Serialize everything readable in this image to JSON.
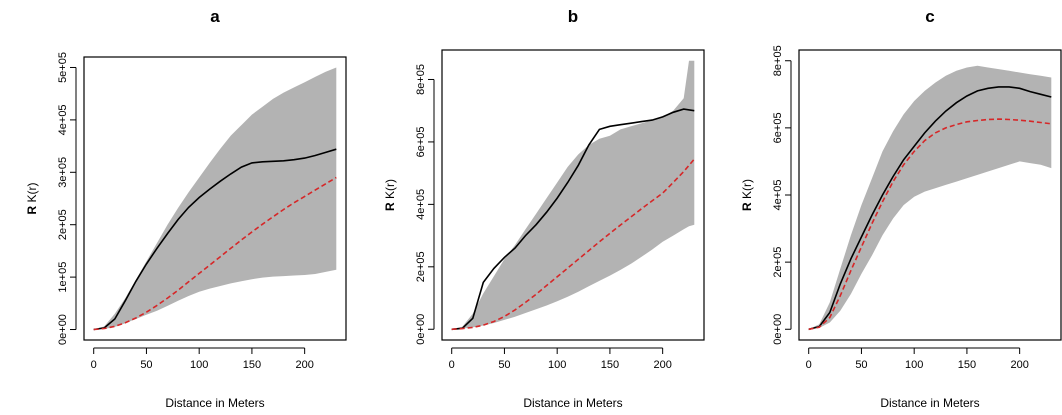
{
  "chart_data": [
    {
      "type": "line",
      "title": "a",
      "xlabel": "Distance in Meters",
      "ylabel_prefix": "R",
      "ylabel": "K(r)",
      "xlim": [
        0,
        230
      ],
      "ylim": [
        0,
        500000
      ],
      "x_ticks": [
        0,
        50,
        100,
        150,
        200
      ],
      "x_tick_labels": [
        "0",
        "50",
        "100",
        "150",
        "200"
      ],
      "y_ticks": [
        0,
        100000,
        200000,
        300000,
        400000,
        500000
      ],
      "y_tick_labels": [
        "0e+00",
        "1e+05",
        "2e+05",
        "3e+05",
        "4e+05",
        "5e+05"
      ],
      "grid": false,
      "envelope": {
        "x": [
          0,
          10,
          20,
          30,
          40,
          50,
          60,
          70,
          80,
          90,
          100,
          110,
          120,
          130,
          140,
          150,
          160,
          170,
          180,
          190,
          200,
          210,
          220,
          230
        ],
        "upper": [
          0,
          6000,
          30000,
          60000,
          95000,
          130000,
          165000,
          200000,
          232000,
          262000,
          290000,
          318000,
          345000,
          370000,
          390000,
          410000,
          425000,
          440000,
          452000,
          462000,
          472000,
          482000,
          492000,
          500000
        ],
        "lower": [
          0,
          1000,
          5000,
          12000,
          20000,
          28000,
          36000,
          45000,
          55000,
          64000,
          72000,
          78000,
          83000,
          88000,
          92000,
          96000,
          99000,
          101000,
          102000,
          103000,
          104000,
          106000,
          110000,
          114000
        ]
      },
      "series": [
        {
          "style": "solid",
          "color": "#000000",
          "x": [
            0,
            10,
            20,
            30,
            40,
            50,
            60,
            70,
            80,
            90,
            100,
            110,
            120,
            130,
            140,
            150,
            160,
            170,
            180,
            190,
            200,
            210,
            220,
            230
          ],
          "values": [
            0,
            3000,
            20000,
            55000,
            92000,
            125000,
            155000,
            183000,
            210000,
            233000,
            252000,
            268000,
            283000,
            297000,
            310000,
            318000,
            320000,
            321000,
            322000,
            324000,
            327000,
            332000,
            338000,
            344000
          ]
        },
        {
          "style": "dashed",
          "color": "#d62728",
          "x": [
            0,
            10,
            20,
            30,
            40,
            50,
            60,
            70,
            80,
            90,
            100,
            110,
            120,
            130,
            140,
            150,
            160,
            170,
            180,
            190,
            200,
            210,
            220,
            230
          ],
          "values": [
            0,
            2000,
            6000,
            13000,
            22000,
            33000,
            46000,
            60000,
            75000,
            91000,
            107000,
            123000,
            139000,
            155000,
            171000,
            186000,
            201000,
            215000,
            229000,
            242000,
            254000,
            266000,
            278000,
            290000
          ]
        }
      ]
    },
    {
      "type": "line",
      "title": "b",
      "xlabel": "Distance in Meters",
      "ylabel_prefix": "R",
      "ylabel": "K(r)",
      "xlim": [
        0,
        230
      ],
      "ylim": [
        0,
        860000
      ],
      "x_ticks": [
        0,
        50,
        100,
        150,
        200
      ],
      "x_tick_labels": [
        "0",
        "50",
        "100",
        "150",
        "200"
      ],
      "y_ticks": [
        0,
        200000,
        400000,
        600000,
        800000
      ],
      "y_tick_labels": [
        "0e+00",
        "2e+05",
        "4e+05",
        "6e+05",
        "8e+05"
      ],
      "grid": false,
      "envelope": {
        "x": [
          0,
          10,
          20,
          30,
          40,
          50,
          60,
          70,
          80,
          90,
          100,
          110,
          120,
          130,
          140,
          150,
          160,
          170,
          180,
          190,
          200,
          210,
          220,
          225,
          230
        ],
        "upper": [
          0,
          8000,
          50000,
          115000,
          170000,
          225000,
          270000,
          320000,
          370000,
          420000,
          470000,
          520000,
          560000,
          590000,
          610000,
          620000,
          640000,
          650000,
          660000,
          670000,
          680000,
          700000,
          740000,
          860000,
          860000
        ],
        "lower": [
          0,
          2000,
          6000,
          12000,
          20000,
          30000,
          40000,
          52000,
          64000,
          76000,
          90000,
          104000,
          120000,
          138000,
          155000,
          172000,
          190000,
          210000,
          232000,
          255000,
          280000,
          300000,
          320000,
          330000,
          335000
        ]
      },
      "series": [
        {
          "style": "solid",
          "color": "#000000",
          "x": [
            0,
            10,
            20,
            30,
            40,
            50,
            60,
            70,
            80,
            90,
            100,
            110,
            120,
            130,
            140,
            150,
            160,
            170,
            180,
            190,
            200,
            210,
            220,
            230
          ],
          "values": [
            0,
            3000,
            35000,
            150000,
            195000,
            230000,
            260000,
            300000,
            335000,
            375000,
            420000,
            470000,
            525000,
            590000,
            640000,
            650000,
            655000,
            660000,
            665000,
            670000,
            680000,
            695000,
            705000,
            700000
          ]
        },
        {
          "style": "dashed",
          "color": "#d62728",
          "x": [
            0,
            10,
            20,
            30,
            40,
            50,
            60,
            70,
            80,
            90,
            100,
            110,
            120,
            130,
            140,
            150,
            160,
            170,
            180,
            190,
            200,
            210,
            220,
            230
          ],
          "values": [
            0,
            2000,
            6000,
            13000,
            25000,
            41000,
            62000,
            86000,
            112000,
            140000,
            168000,
            196000,
            224000,
            252000,
            280000,
            307000,
            334000,
            360000,
            386000,
            411000,
            436000,
            470000,
            505000,
            545000
          ]
        }
      ]
    },
    {
      "type": "line",
      "title": "c",
      "xlabel": "Distance in Meters",
      "ylabel_prefix": "R",
      "ylabel": "K(r)",
      "xlim": [
        0,
        230
      ],
      "ylim": [
        0,
        800000
      ],
      "x_ticks": [
        0,
        50,
        100,
        150,
        200
      ],
      "x_tick_labels": [
        "0",
        "50",
        "100",
        "150",
        "200"
      ],
      "y_ticks": [
        0,
        200000,
        400000,
        600000,
        800000
      ],
      "y_tick_labels": [
        "0e+00",
        "2e+05",
        "4e+05",
        "6e+05",
        "8e+05"
      ],
      "grid": false,
      "envelope": {
        "x": [
          0,
          10,
          20,
          30,
          40,
          50,
          60,
          70,
          80,
          90,
          100,
          110,
          120,
          130,
          140,
          150,
          160,
          170,
          180,
          190,
          200,
          210,
          220,
          230
        ],
        "upper": [
          0,
          15000,
          80000,
          180000,
          280000,
          370000,
          450000,
          530000,
          590000,
          640000,
          680000,
          710000,
          735000,
          755000,
          770000,
          780000,
          785000,
          780000,
          775000,
          770000,
          765000,
          760000,
          755000,
          750000
        ],
        "lower": [
          0,
          4000,
          20000,
          55000,
          105000,
          165000,
          220000,
          280000,
          330000,
          370000,
          395000,
          410000,
          420000,
          430000,
          440000,
          450000,
          460000,
          470000,
          480000,
          490000,
          500000,
          495000,
          490000,
          480000
        ]
      },
      "series": [
        {
          "style": "solid",
          "color": "#000000",
          "x": [
            0,
            10,
            20,
            30,
            40,
            50,
            60,
            70,
            80,
            90,
            100,
            110,
            120,
            130,
            140,
            150,
            160,
            170,
            180,
            190,
            200,
            210,
            220,
            230
          ],
          "values": [
            0,
            8000,
            50000,
            135000,
            210000,
            275000,
            340000,
            400000,
            455000,
            505000,
            545000,
            585000,
            620000,
            650000,
            675000,
            695000,
            710000,
            718000,
            722000,
            722000,
            718000,
            708000,
            700000,
            692000
          ]
        },
        {
          "style": "dashed",
          "color": "#d62728",
          "x": [
            0,
            10,
            20,
            30,
            40,
            50,
            60,
            70,
            80,
            90,
            100,
            110,
            120,
            130,
            140,
            150,
            160,
            170,
            180,
            190,
            200,
            210,
            220,
            230
          ],
          "values": [
            0,
            6000,
            35000,
            100000,
            175000,
            245000,
            315000,
            380000,
            440000,
            490000,
            530000,
            562000,
            585000,
            600000,
            610000,
            618000,
            622000,
            625000,
            626000,
            625000,
            623000,
            620000,
            616000,
            612000
          ]
        }
      ]
    }
  ],
  "colors": {
    "envelope": "#b3b3b3",
    "observed": "#000000",
    "expected": "#d62728"
  }
}
